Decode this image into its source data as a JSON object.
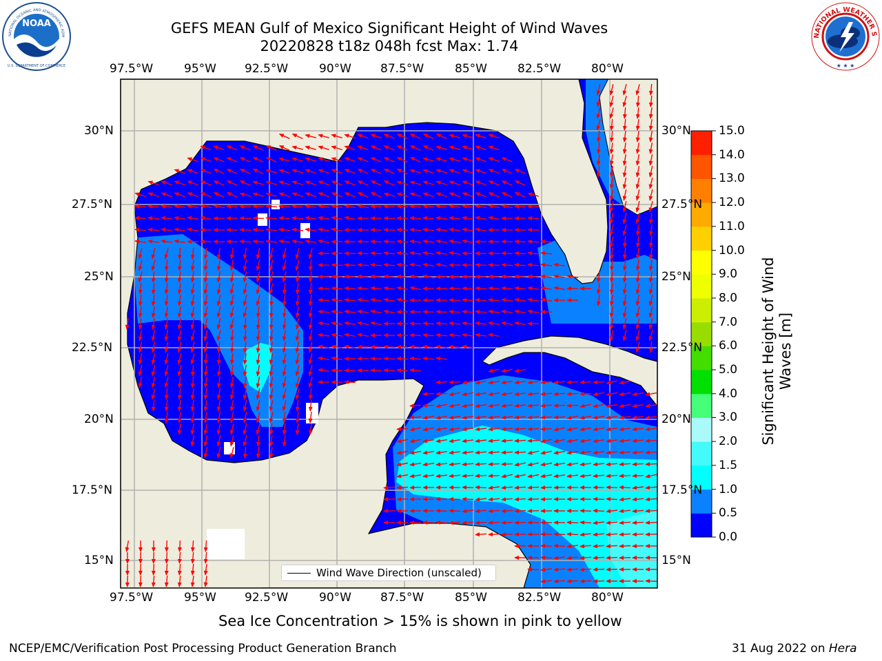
{
  "title": {
    "line1": "GEFS MEAN Gulf of Mexico Significant Height of Wind Waves",
    "line2": "20220828 t18z 048h fcst   Max: 1.74"
  },
  "logos": {
    "noaa": {
      "name": "NOAA",
      "ring_text": "NATIONAL OCEANIC AND ATMOSPHERIC ADMINISTRATION",
      "bottom_text": "U.S. DEPARTMENT OF COMMERCE"
    },
    "nws": {
      "ring_text": "NATIONAL WEATHER SERVICE"
    }
  },
  "map": {
    "lon_ticks": [
      "97.5°W",
      "95°W",
      "92.5°W",
      "90°W",
      "87.5°W",
      "85°W",
      "82.5°W",
      "80°W"
    ],
    "lat_ticks_left": [
      "30°N",
      "27.5°N",
      "25°N",
      "22.5°N",
      "20°N",
      "17.5°N",
      "15°N"
    ],
    "lat_ticks_right": [
      "30°N",
      "27.5°N",
      "25°N",
      "22.5°N",
      "20°N",
      "17.5°N",
      "15°N"
    ],
    "lon_range": [
      -98,
      -78.2
    ],
    "lat_range": [
      14,
      31.8
    ],
    "grid": true,
    "colors": {
      "land": "#eeecdc",
      "ocean_low": "#0000ff",
      "ocean_mid": "#0a82ff",
      "ocean_high": "#00ffff",
      "ocean_peak": "#44fafa",
      "arrow": "#ff0000"
    },
    "legend_label": "Wind Wave Direction (unscaled)"
  },
  "colorbar": {
    "label": "Significant Height of Wind Waves [m]",
    "tick_labels": [
      "0.0",
      "0.5",
      "1.0",
      "1.5",
      "2.0",
      "3.0",
      "4.0",
      "5.0",
      "6.0",
      "7.0",
      "8.0",
      "9.0",
      "10.0",
      "11.0",
      "12.0",
      "13.0",
      "14.0",
      "15.0"
    ],
    "colors": [
      "#0000ff",
      "#0a82ff",
      "#00ffff",
      "#44fafa",
      "#aafafa",
      "#44ff77",
      "#00e000",
      "#44dd00",
      "#99dd00",
      "#ccee00",
      "#eeff00",
      "#ffff00",
      "#ffd000",
      "#ffaa00",
      "#ff8000",
      "#ff5500",
      "#ff2000"
    ]
  },
  "footer": {
    "sea_ice": "Sea Ice Concentration > 15% is shown in pink to yellow",
    "branch": "NCEP/EMC/Verification Post Processing Product Generation Branch",
    "date": "31 Aug 2022 on ",
    "machine": "Hera"
  }
}
